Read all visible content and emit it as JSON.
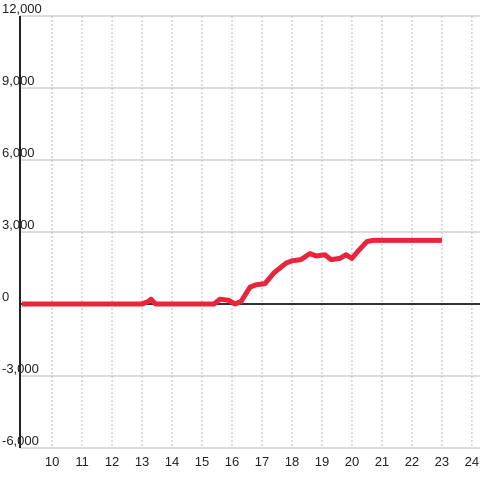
{
  "chart_data": {
    "type": "line",
    "x": [
      9.0,
      13.0,
      13.2,
      13.3,
      13.45,
      15.4,
      15.6,
      15.9,
      16.1,
      16.3,
      16.6,
      16.8,
      17.1,
      17.4,
      17.8,
      18.0,
      18.3,
      18.6,
      18.8,
      19.1,
      19.3,
      19.6,
      19.8,
      20.0,
      20.2,
      20.5,
      20.7,
      23.0
    ],
    "series": [
      {
        "color": "#e8253a",
        "values": [
          0,
          0,
          100,
          200,
          0,
          0,
          200,
          150,
          0,
          100,
          700,
          800,
          850,
          1300,
          1700,
          1800,
          1850,
          2100,
          2000,
          2050,
          1850,
          1900,
          2050,
          1900,
          2200,
          2600,
          2650,
          2650
        ]
      }
    ],
    "xlim": [
      8.93,
      24.27
    ],
    "xticks": [
      10,
      11,
      12,
      13,
      14,
      15,
      16,
      17,
      18,
      19,
      20,
      21,
      22,
      23,
      24
    ],
    "ylim": [
      -6000,
      12000
    ],
    "yticks": [
      {
        "value": -6000,
        "label": "-6,000"
      },
      {
        "value": -3000,
        "label": "-3,000"
      },
      0,
      {
        "value": 3000,
        "label": "3,000"
      },
      {
        "value": 6000,
        "label": "6,000"
      },
      {
        "value": 9000,
        "label": "9,000"
      },
      {
        "value": 12000,
        "label": "12,000"
      }
    ],
    "grid": true
  }
}
